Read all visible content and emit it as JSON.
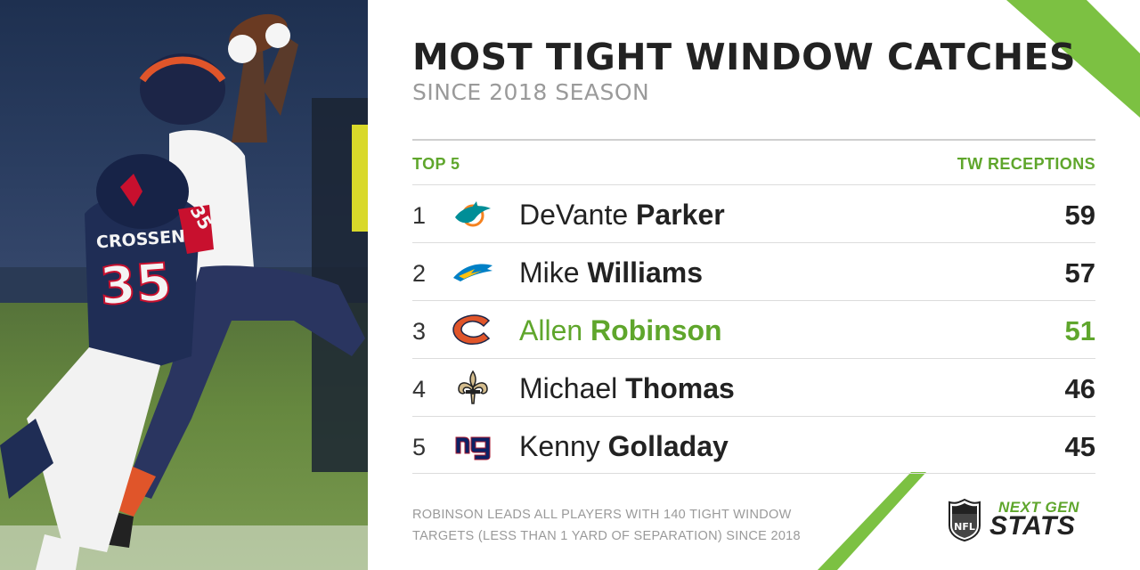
{
  "title": "MOST TIGHT WINDOW CATCHES",
  "subtitle": "SINCE 2018 SEASON",
  "columns": {
    "left": "TOP 5",
    "right": "TW RECEPTIONS"
  },
  "rows": [
    {
      "rank": "1",
      "first": "DeVante",
      "last": "Parker",
      "value": "59",
      "team_icon": "dolphins-logo-icon",
      "highlight": false
    },
    {
      "rank": "2",
      "first": "Mike",
      "last": "Williams",
      "value": "57",
      "team_icon": "chargers-logo-icon",
      "highlight": false
    },
    {
      "rank": "3",
      "first": "Allen",
      "last": "Robinson",
      "value": "51",
      "team_icon": "bears-logo-icon",
      "highlight": true
    },
    {
      "rank": "4",
      "first": "Michael",
      "last": "Thomas",
      "value": "46",
      "team_icon": "saints-logo-icon",
      "highlight": false
    },
    {
      "rank": "5",
      "first": "Kenny",
      "last": "Golladay",
      "value": "45",
      "team_icon": "giants-logo-icon",
      "highlight": false
    }
  ],
  "footnote": {
    "line1": "ROBINSON LEADS ALL PLAYERS WITH 140 TIGHT WINDOW",
    "line2": "TARGETS (LESS THAN 1 YARD OF SEPARATION) SINCE 2018"
  },
  "branding": {
    "line1": "NEXT GEN",
    "line2": "STATS",
    "league_logo": "nfl-shield-icon"
  },
  "photo": {
    "jersey_name": "CROSSEN",
    "jersey_number": "35",
    "sleeve_number": "35"
  },
  "colors": {
    "accent": "#5fa62c",
    "text": "#222222",
    "muted": "#9a9a9a"
  }
}
